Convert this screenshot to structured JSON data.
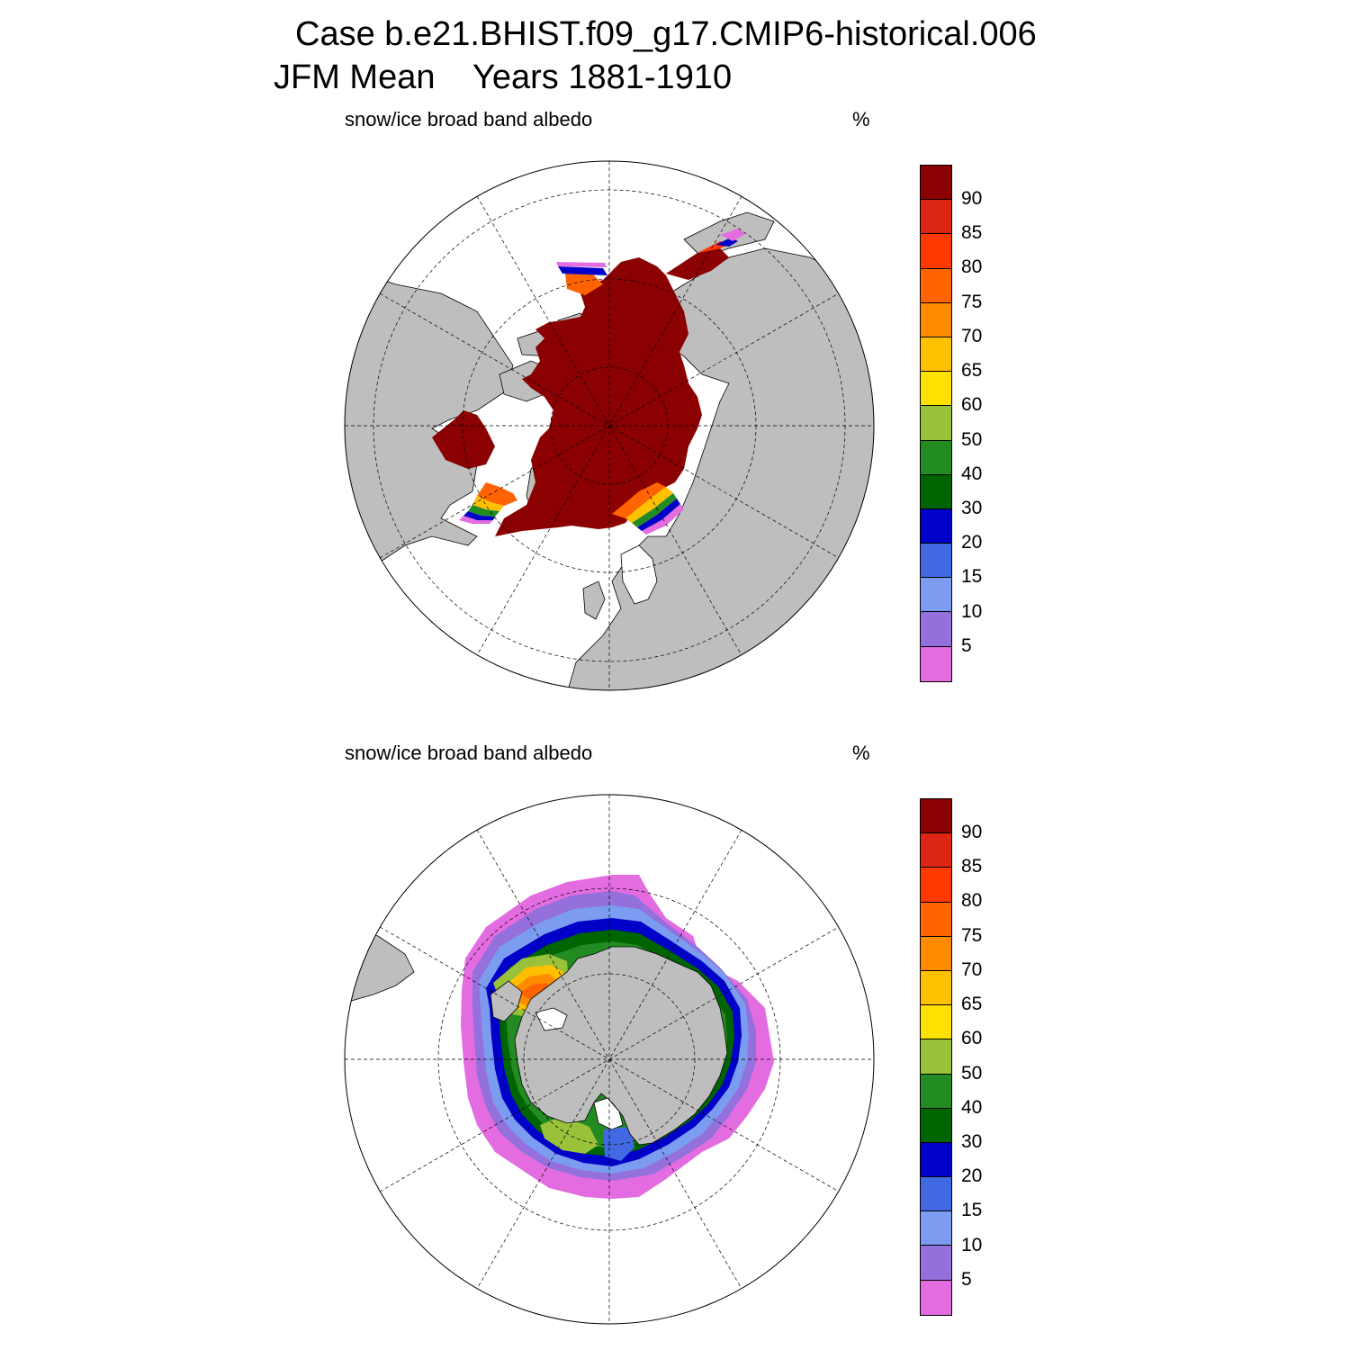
{
  "title": {
    "line1": "Case b.e21.BHIST.f09_g17.CMIP6-historical.006",
    "season": "JFM Mean",
    "years": "Years 1881-1910"
  },
  "colors": {
    "land": "#bebebe",
    "ocean": "#ffffff",
    "scale": [
      "#8b0000",
      "#dc2512",
      "#ff3a00",
      "#ff6400",
      "#ff8c00",
      "#ffc000",
      "#ffe000",
      "#9ac13a",
      "#228b22",
      "#006400",
      "#0000c8",
      "#4169e1",
      "#7b9cf0",
      "#9370db",
      "#e36ce1"
    ]
  },
  "panels": [
    {
      "id": "north",
      "hemisphere": "Northern Hemisphere",
      "label": "snow/ice broad band albedo",
      "units": "%",
      "colorbar_labels": [
        "90",
        "85",
        "80",
        "75",
        "70",
        "65",
        "60",
        "50",
        "40",
        "30",
        "20",
        "15",
        "10",
        "5"
      ]
    },
    {
      "id": "south",
      "hemisphere": "Southern Hemisphere",
      "label": "snow/ice broad band albedo",
      "units": "%",
      "colorbar_labels": [
        "90",
        "85",
        "80",
        "75",
        "70",
        "65",
        "60",
        "50",
        "40",
        "30",
        "20",
        "15",
        "10",
        "5"
      ]
    }
  ]
}
